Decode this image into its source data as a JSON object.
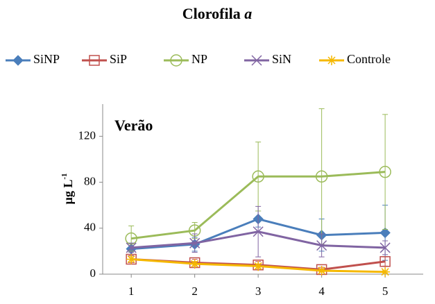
{
  "chart_data": {
    "type": "line",
    "title": "Clorofila",
    "title_italic": "a",
    "annotation": "Verão",
    "ylabel": "µg L",
    "ylabel_sup": "-1",
    "x": [
      1,
      2,
      3,
      4,
      5
    ],
    "xlim": [
      0.55,
      5.6
    ],
    "xticks": [
      1,
      2,
      3,
      4,
      5
    ],
    "ylim": [
      0,
      148
    ],
    "yticks": [
      0,
      40,
      80,
      120
    ],
    "grid": false,
    "legend": "top",
    "series": [
      {
        "name": "SiNP",
        "color": "#4a7ebb",
        "marker": "diamond",
        "values": [
          22,
          26,
          48,
          34,
          36
        ],
        "errors": [
          5,
          6,
          7,
          14,
          24
        ]
      },
      {
        "name": "SiP",
        "color": "#c0504d",
        "marker": "square",
        "values": [
          13,
          10,
          8,
          4,
          11
        ],
        "errors": [
          3,
          3,
          3,
          2,
          4
        ]
      },
      {
        "name": "NP",
        "color": "#9bbb59",
        "marker": "circle",
        "values": [
          31,
          38,
          85,
          85,
          89
        ],
        "errors": [
          11,
          7,
          30,
          59,
          50
        ]
      },
      {
        "name": "SiN",
        "color": "#8064a2",
        "marker": "x",
        "values": [
          23,
          27,
          37,
          25,
          23
        ],
        "errors": [
          4,
          8,
          22,
          10,
          6
        ]
      },
      {
        "name": "Controle",
        "color": "#f5b800",
        "marker": "star",
        "values": [
          13,
          9,
          7,
          3,
          2
        ],
        "errors": [
          2,
          2,
          2,
          1,
          1
        ]
      }
    ]
  }
}
